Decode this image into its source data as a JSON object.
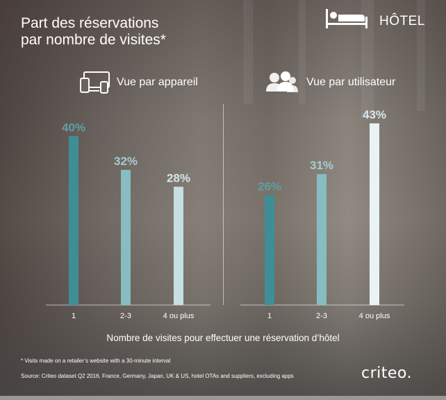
{
  "title": "Part des réservations\npar nombre de visites*",
  "category_label": "HÔTEL",
  "panels": {
    "device_label": "Vue par appareil",
    "user_label": "Vue par utilisateur"
  },
  "icons": {
    "category": "bed-icon",
    "device": "devices-icon",
    "user": "users-icon"
  },
  "colors": {
    "bar_1": "#3e8e97",
    "bar_2": "#86bcc2",
    "bar_3": "#c6dfe3",
    "bar_user_3": "#e9f2f4",
    "label_1": "#5f9ea5",
    "label_2": "#a2cdd2",
    "label_3": "#d4e8eb"
  },
  "chart_data": [
    {
      "type": "bar",
      "panel": "Vue par appareil",
      "categories": [
        "1",
        "2-3",
        "4 ou plus"
      ],
      "values": [
        40,
        32,
        28
      ],
      "value_labels": [
        "40%",
        "32%",
        "28%"
      ],
      "ylim": [
        0,
        45
      ],
      "xlabel": "Nombre de visites pour effectuer une réservation d’hôtel"
    },
    {
      "type": "bar",
      "panel": "Vue par utilisateur",
      "categories": [
        "1",
        "2-3",
        "4 ou plus"
      ],
      "values": [
        26,
        31,
        43
      ],
      "value_labels": [
        "26%",
        "31%",
        "43%"
      ],
      "ylim": [
        0,
        45
      ],
      "xlabel": "Nombre de visites pour effectuer une réservation d’hôtel"
    }
  ],
  "footnote": "* Visits made on a retailer’s website with a 30-minute interval",
  "source": "Source: Criteo dataset Q2 2016, France, Germany, Japan, UK & US, hotel OTAs and suppliers, excluding apps",
  "logo": "criteo."
}
